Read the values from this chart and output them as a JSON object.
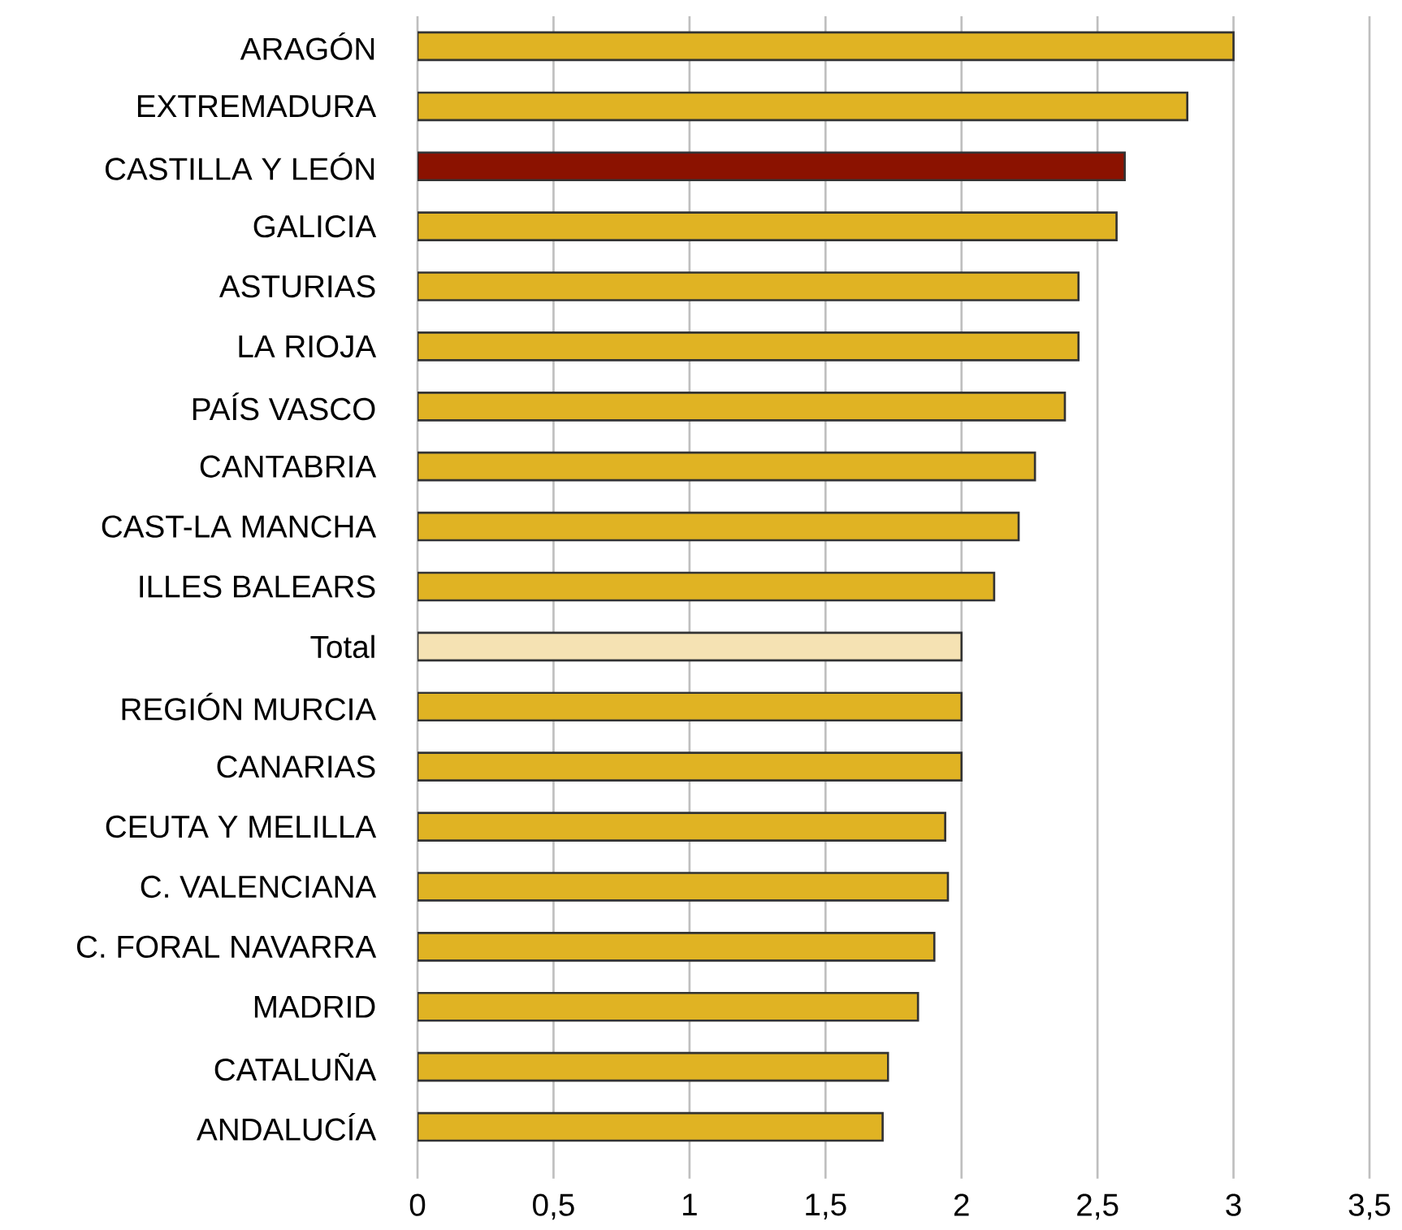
{
  "chart_data": {
    "type": "bar",
    "orientation": "horizontal",
    "categories": [
      "ARAGÓN",
      "EXTREMADURA",
      "CASTILLA Y LEÓN",
      "GALICIA",
      "ASTURIAS",
      "LA RIOJA",
      "PAÍS VASCO",
      "CANTABRIA",
      "CAST-LA MANCHA",
      "ILLES BALEARS",
      "Total",
      "REGIÓN MURCIA",
      "CANARIAS",
      "CEUTA Y MELILLA",
      "C. VALENCIANA",
      "C. FORAL NAVARRA",
      "MADRID",
      "CATALUÑA",
      "ANDALUCÍA"
    ],
    "values": [
      3.0,
      2.83,
      2.6,
      2.57,
      2.43,
      2.43,
      2.38,
      2.27,
      2.21,
      2.12,
      2.0,
      2.0,
      2.0,
      1.94,
      1.95,
      1.9,
      1.84,
      1.73,
      1.71
    ],
    "colors": [
      "#e0b323",
      "#e0b323",
      "#8b1200",
      "#e0b323",
      "#e0b323",
      "#e0b323",
      "#e0b323",
      "#e0b323",
      "#e0b323",
      "#e0b323",
      "#f5e2b3",
      "#e0b323",
      "#e0b323",
      "#e0b323",
      "#e0b323",
      "#e0b323",
      "#e0b323",
      "#e0b323",
      "#e0b323"
    ],
    "xlim": [
      0,
      3.5
    ],
    "xticks": [
      0,
      {
        "value": 0.5,
        "label": "0,5"
      },
      1,
      {
        "value": 1.5,
        "label": "1,5"
      },
      2,
      {
        "value": 2.5,
        "label": "2,5"
      },
      3,
      {
        "value": 3.5,
        "label": "3,5"
      }
    ],
    "grid": "x"
  }
}
